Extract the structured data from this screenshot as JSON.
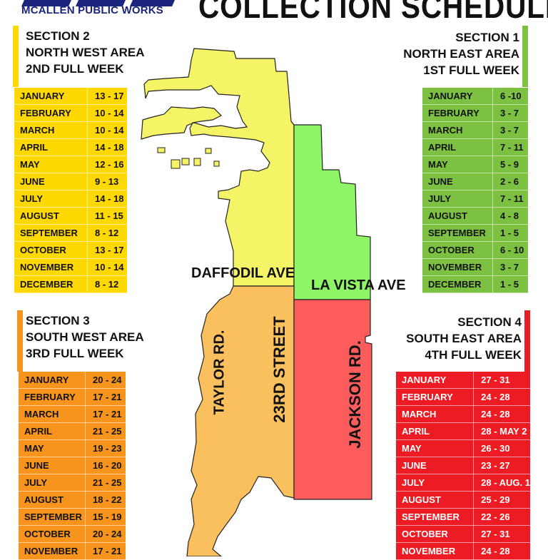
{
  "header": {
    "org": "MCALLEN PUBLIC WORKS",
    "title": "COLLECTION SCHEDULE"
  },
  "colors": {
    "section1": "#7dc142",
    "section2": "#ffd800",
    "section3": "#f7941d",
    "section4": "#ed1c24",
    "map_nw": "#f4f466",
    "map_ne": "#8ef566",
    "map_sw": "#fbc05e",
    "map_se": "#fd5c5c",
    "logo": "#1a237e"
  },
  "roads": {
    "daffodil": "DAFFODIL AVE",
    "la_vista": "LA VISTA AVE",
    "taylor": "TAYLOR RD.",
    "street23": "23RD STREET",
    "jackson": "JACKSON RD."
  },
  "sections": {
    "s1": {
      "name": "SECTION 1",
      "area": "NORTH EAST AREA",
      "week": "1ST FULL WEEK",
      "rows": [
        {
          "month": "JANUARY",
          "dates": "6 -10"
        },
        {
          "month": "FEBRUARY",
          "dates": "3 - 7"
        },
        {
          "month": "MARCH",
          "dates": "3 - 7"
        },
        {
          "month": "APRIL",
          "dates": "7 - 11"
        },
        {
          "month": "MAY",
          "dates": "5 - 9"
        },
        {
          "month": "JUNE",
          "dates": "2 - 6"
        },
        {
          "month": "JULY",
          "dates": "7 - 11"
        },
        {
          "month": "AUGUST",
          "dates": "4 - 8"
        },
        {
          "month": "SEPTEMBER",
          "dates": "1 - 5"
        },
        {
          "month": "OCTOBER",
          "dates": "6 - 10"
        },
        {
          "month": "NOVEMBER",
          "dates": "3 - 7"
        },
        {
          "month": "DECEMBER",
          "dates": "1 - 5"
        }
      ]
    },
    "s2": {
      "name": "SECTION 2",
      "area": "NORTH WEST AREA",
      "week": "2ND FULL WEEK",
      "rows": [
        {
          "month": "JANUARY",
          "dates": "13 - 17"
        },
        {
          "month": "FEBRUARY",
          "dates": "10 - 14"
        },
        {
          "month": "MARCH",
          "dates": "10 - 14"
        },
        {
          "month": "APRIL",
          "dates": "14 - 18"
        },
        {
          "month": "MAY",
          "dates": "12 - 16"
        },
        {
          "month": "JUNE",
          "dates": "9 - 13"
        },
        {
          "month": "JULY",
          "dates": "14 - 18"
        },
        {
          "month": "AUGUST",
          "dates": "11 - 15"
        },
        {
          "month": "SEPTEMBER",
          "dates": "8 - 12"
        },
        {
          "month": "OCTOBER",
          "dates": "13 - 17"
        },
        {
          "month": "NOVEMBER",
          "dates": "10 - 14"
        },
        {
          "month": "DECEMBER",
          "dates": "8 - 12"
        }
      ]
    },
    "s3": {
      "name": "SECTION 3",
      "area": "SOUTH WEST AREA",
      "week": "3RD FULL WEEK",
      "rows": [
        {
          "month": "JANUARY",
          "dates": "20 - 24"
        },
        {
          "month": "FEBRUARY",
          "dates": "17 - 21"
        },
        {
          "month": "MARCH",
          "dates": "17 - 21"
        },
        {
          "month": "APRIL",
          "dates": "21 - 25"
        },
        {
          "month": "MAY",
          "dates": "19 - 23"
        },
        {
          "month": "JUNE",
          "dates": "16 - 20"
        },
        {
          "month": "JULY",
          "dates": "21 - 25"
        },
        {
          "month": "AUGUST",
          "dates": "18 - 22"
        },
        {
          "month": "SEPTEMBER",
          "dates": "15 - 19"
        },
        {
          "month": "OCTOBER",
          "dates": "20 - 24"
        },
        {
          "month": "NOVEMBER",
          "dates": "17 - 21"
        }
      ]
    },
    "s4": {
      "name": "SECTION 4",
      "area": "SOUTH EAST AREA",
      "week": "4TH FULL WEEK",
      "rows": [
        {
          "month": "JANUARY",
          "dates": "27 - 31"
        },
        {
          "month": "FEBRUARY",
          "dates": "24 - 28"
        },
        {
          "month": "MARCH",
          "dates": "24 - 28"
        },
        {
          "month": "APRIL",
          "dates": "28 - MAY 2"
        },
        {
          "month": "MAY",
          "dates": "26 - 30"
        },
        {
          "month": "JUNE",
          "dates": "23 - 27"
        },
        {
          "month": "JULY",
          "dates": "28 - AUG. 1"
        },
        {
          "month": "AUGUST",
          "dates": "25 - 29"
        },
        {
          "month": "SEPTEMBER",
          "dates": "22 - 26"
        },
        {
          "month": "OCTOBER",
          "dates": "27 - 31"
        },
        {
          "month": "NOVEMBER",
          "dates": "24 - 28"
        }
      ]
    }
  }
}
